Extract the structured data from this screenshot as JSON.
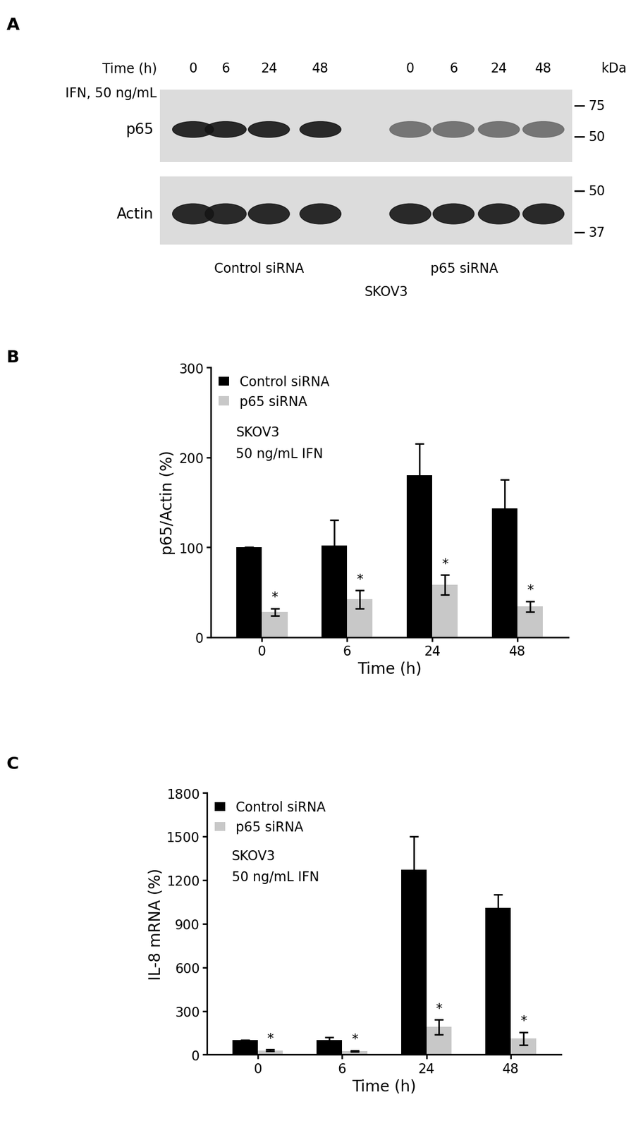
{
  "chart_data": [
    {
      "type": "blot",
      "panel": "A",
      "time_label": "Time (h)",
      "treatment": "IFN, 50 ng/mL",
      "lanes": [
        "0",
        "6",
        "24",
        "48"
      ],
      "groups": [
        "Control siRNA",
        "p65 siRNA"
      ],
      "cell_line": "SKOV3",
      "unit": "kDa",
      "rows": [
        {
          "name": "p65",
          "markers": [
            75,
            50
          ]
        },
        {
          "name": "Actin",
          "markers": [
            50,
            37
          ]
        }
      ]
    },
    {
      "type": "bar",
      "panel": "B",
      "categories": [
        "0",
        "6",
        "24",
        "48"
      ],
      "x_label": "Time (h)",
      "y_label": "p65/Actin (%)",
      "annotations": [
        "SKOV3",
        "50 ng/mL IFN"
      ],
      "ylim": [
        0,
        300
      ],
      "yticks": [
        0,
        100,
        200,
        300
      ],
      "legend": "upper left",
      "series": [
        {
          "name": "Control siRNA",
          "color": "#000000",
          "values": [
            100,
            102,
            180,
            143
          ],
          "errors": [
            0,
            28,
            35,
            32
          ]
        },
        {
          "name": "p65 siRNA",
          "color": "#c8c8c8",
          "values": [
            28,
            42,
            58,
            34
          ],
          "errors": [
            4,
            10,
            11,
            6
          ],
          "significance": [
            "*",
            "*",
            "*",
            "*"
          ]
        }
      ]
    },
    {
      "type": "bar",
      "panel": "C",
      "categories": [
        "0",
        "6",
        "24",
        "48"
      ],
      "x_label": "Time (h)",
      "y_label": "IL-8 mRNA (%)",
      "annotations": [
        "SKOV3",
        "50 ng/mL IFN"
      ],
      "ylim": [
        0,
        1800
      ],
      "yticks": [
        0,
        300,
        600,
        900,
        1200,
        1500,
        1800
      ],
      "legend": "upper left",
      "series": [
        {
          "name": "Control siRNA",
          "color": "#000000",
          "values": [
            100,
            100,
            1270,
            1010
          ],
          "errors": [
            0,
            20,
            230,
            90
          ]
        },
        {
          "name": "p65 siRNA",
          "color": "#c8c8c8",
          "values": [
            30,
            25,
            190,
            110
          ],
          "errors": [
            5,
            5,
            50,
            45
          ],
          "significance": [
            "*",
            "*",
            "*",
            "*"
          ]
        }
      ]
    }
  ]
}
